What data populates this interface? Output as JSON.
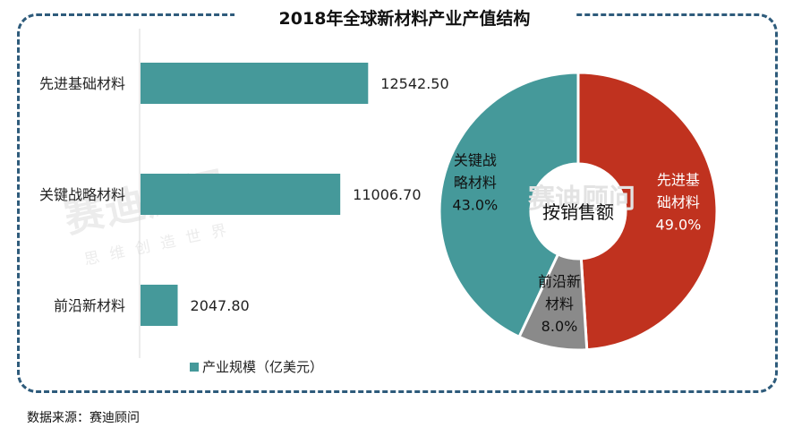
{
  "chart_title": "2018年全球新材料产业产值结构",
  "watermark": {
    "main": "赛迪顾问",
    "sub": "思维创造世界",
    "center": "赛迪顾问"
  },
  "source": "数据来源：赛迪顾问",
  "colors": {
    "teal": "#45999a",
    "red": "#c0321f",
    "gray": "#8a8a8a",
    "frame": "#2e5b7b"
  },
  "chart_data": [
    {
      "type": "bar",
      "orientation": "horizontal",
      "categories": [
        "先进基础材料",
        "关键战略材料",
        "前沿新材料"
      ],
      "values": [
        12542.5,
        11006.7,
        2047.8
      ],
      "value_labels": [
        "12542.50",
        "11006.70",
        "2047.80"
      ],
      "series": [
        {
          "name": "产业规模（亿美元）",
          "values": [
            12542.5,
            11006.7,
            2047.8
          ]
        }
      ],
      "legend": "bottom-left",
      "xlim": [
        0,
        14500
      ]
    },
    {
      "type": "pie",
      "subtype": "donut",
      "center_label": "按销售额",
      "slices": [
        {
          "label_line1": "先进基",
          "label_line2": "础材料",
          "percent_label": "49.0%",
          "value": 49.0,
          "color": "#c0321f"
        },
        {
          "label_line1": "前沿新",
          "label_line2": "材料",
          "percent_label": "8.0%",
          "value": 8.0,
          "color": "#8a8a8a"
        },
        {
          "label_line1": "关键战",
          "label_line2": "略材料",
          "percent_label": "43.0%",
          "value": 43.0,
          "color": "#45999a"
        }
      ]
    }
  ]
}
